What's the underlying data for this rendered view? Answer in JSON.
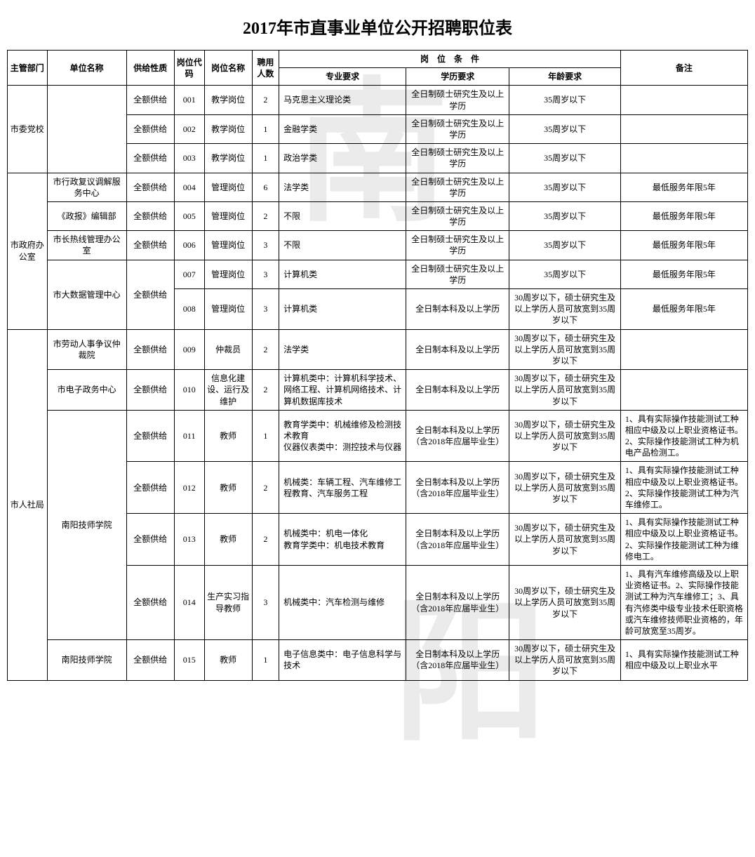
{
  "title": "2017年市直事业单位公开招聘职位表",
  "headers": {
    "dept": "主管部门",
    "unit": "单位名称",
    "supply": "供给性质",
    "code": "岗位代码",
    "posname": "岗位名称",
    "count": "聘用人数",
    "conditions": "岗　位　条　件",
    "major": "专业要求",
    "edu": "学历要求",
    "age": "年龄要求",
    "note": "备注"
  },
  "style": {
    "font_family": "SimSun",
    "title_fontsize": 24,
    "cell_fontsize": 12,
    "border_color": "#000000",
    "background_color": "#ffffff",
    "text_color": "#000000",
    "watermark_color": "rgba(0,0,0,0.08)",
    "watermark_chars": [
      "南",
      "阳"
    ]
  },
  "groups": [
    {
      "dept": "市委党校",
      "units": [
        {
          "unit": "",
          "rows": [
            {
              "supply": "全额供给",
              "code": "001",
              "posname": "教学岗位",
              "count": "2",
              "major": "马克思主义理论类",
              "edu": "全日制硕士研究生及以上学历",
              "age": "35周岁以下",
              "note": ""
            },
            {
              "supply": "全额供给",
              "code": "002",
              "posname": "教学岗位",
              "count": "1",
              "major": "金融学类",
              "edu": "全日制硕士研究生及以上学历",
              "age": "35周岁以下",
              "note": ""
            },
            {
              "supply": "全额供给",
              "code": "003",
              "posname": "教学岗位",
              "count": "1",
              "major": "政治学类",
              "edu": "全日制硕士研究生及以上学历",
              "age": "35周岁以下",
              "note": ""
            }
          ]
        }
      ]
    },
    {
      "dept": "市政府办公室",
      "units": [
        {
          "unit": "市行政复议调解服务中心",
          "rows": [
            {
              "supply": "全额供给",
              "code": "004",
              "posname": "管理岗位",
              "count": "6",
              "major": "法学类",
              "edu": "全日制硕士研究生及以上学历",
              "age": "35周岁以下",
              "note": "最低服务年限5年"
            }
          ]
        },
        {
          "unit": "《政报》编辑部",
          "rows": [
            {
              "supply": "全额供给",
              "code": "005",
              "posname": "管理岗位",
              "count": "2",
              "major": "不限",
              "edu": "全日制硕士研究生及以上学历",
              "age": "35周岁以下",
              "note": "最低服务年限5年"
            }
          ]
        },
        {
          "unit": "市长热线管理办公室",
          "rows": [
            {
              "supply": "全额供给",
              "code": "006",
              "posname": "管理岗位",
              "count": "3",
              "major": "不限",
              "edu": "全日制硕士研究生及以上学历",
              "age": "35周岁以下",
              "note": "最低服务年限5年"
            }
          ]
        },
        {
          "unit": "市大数据管理中心",
          "rows": [
            {
              "supply": "全额供给",
              "code": "007",
              "posname": "管理岗位",
              "count": "3",
              "major": "计算机类",
              "edu": "全日制硕士研究生及以上学历",
              "age": "35周岁以下",
              "note": "最低服务年限5年"
            },
            {
              "supply": "",
              "code": "008",
              "posname": "管理岗位",
              "count": "3",
              "major": "计算机类",
              "edu": "全日制本科及以上学历",
              "age": "30周岁以下，硕士研究生及以上学历人员可放宽到35周岁以下",
              "note": "最低服务年限5年"
            }
          ],
          "supply_merged": "全额供给"
        }
      ]
    },
    {
      "dept": "市人社局",
      "units": [
        {
          "unit": "市劳动人事争议仲裁院",
          "rows": [
            {
              "supply": "全额供给",
              "code": "009",
              "posname": "仲裁员",
              "count": "2",
              "major": "法学类",
              "edu": "全日制本科及以上学历",
              "age": "30周岁以下，硕士研究生及以上学历人员可放宽到35周岁以下",
              "note": ""
            }
          ]
        },
        {
          "unit": "市电子政务中心",
          "rows": [
            {
              "supply": "全额供给",
              "code": "010",
              "posname": "信息化建设、运行及维护",
              "count": "2",
              "major": "计算机类中：计算机科学技术、网络工程、计算机网络技术、计算机数据库技术",
              "edu": "全日制本科及以上学历",
              "age": "30周岁以下，硕士研究生及以上学历人员可放宽到35周岁以下",
              "note": ""
            }
          ]
        },
        {
          "unit": "南阳技师学院",
          "rows": [
            {
              "supply": "全额供给",
              "code": "011",
              "posname": "教师",
              "count": "1",
              "major": "教育学类中：机械维修及检测技术教育\n仪器仪表类中：测控技术与仪器",
              "edu": "全日制本科及以上学历（含2018年应届毕业生）",
              "age": "30周岁以下，硕士研究生及以上学历人员可放宽到35周岁以下",
              "note": "1、具有实际操作技能测试工种相应中级及以上职业资格证书。\n2、实际操作技能测试工种为机电产品检测工。"
            },
            {
              "supply": "全额供给",
              "code": "012",
              "posname": "教师",
              "count": "2",
              "major": "机械类：车辆工程、汽车维修工程教育、汽车服务工程",
              "edu": "全日制本科及以上学历（含2018年应届毕业生）",
              "age": "30周岁以下，硕士研究生及以上学历人员可放宽到35周岁以下",
              "note": "1、具有实际操作技能测试工种相应中级及以上职业资格证书。\n2、实际操作技能测试工种为汽车维修工。"
            },
            {
              "supply": "全额供给",
              "code": "013",
              "posname": "教师",
              "count": "2",
              "major": "机械类中：机电一体化\n教育学类中：机电技术教育",
              "edu": "全日制本科及以上学历（含2018年应届毕业生）",
              "age": "30周岁以下，硕士研究生及以上学历人员可放宽到35周岁以下",
              "note": "1、具有实际操作技能测试工种相应中级及以上职业资格证书。\n2、实际操作技能测试工种为维修电工。"
            },
            {
              "supply": "全额供给",
              "code": "014",
              "posname": "生产实习指导教师",
              "count": "3",
              "major": "机械类中：汽车检测与维修",
              "edu": "全日制本科及以上学历（含2018年应届毕业生）",
              "age": "30周岁以下，硕士研究生及以上学历人员可放宽到35周岁以下",
              "note": "1、具有汽车维修高级及以上职业资格证书。2、实际操作技能测试工种为汽车维修工；3、具有汽修类中级专业技术任职资格或汽车维修技师职业资格的，年龄可放宽至35周岁。"
            }
          ]
        },
        {
          "unit": "南阳技师学院",
          "rows": [
            {
              "supply": "全额供给",
              "code": "015",
              "posname": "教师",
              "count": "1",
              "major": "电子信息类中：电子信息科学与技术",
              "edu": "全日制本科及以上学历（含2018年应届毕业生）",
              "age": "30周岁以下，硕士研究生及以上学历人员可放宽到35周岁以下",
              "note": "1、具有实际操作技能测试工种相应中级及以上职业水平"
            }
          ]
        }
      ]
    }
  ]
}
